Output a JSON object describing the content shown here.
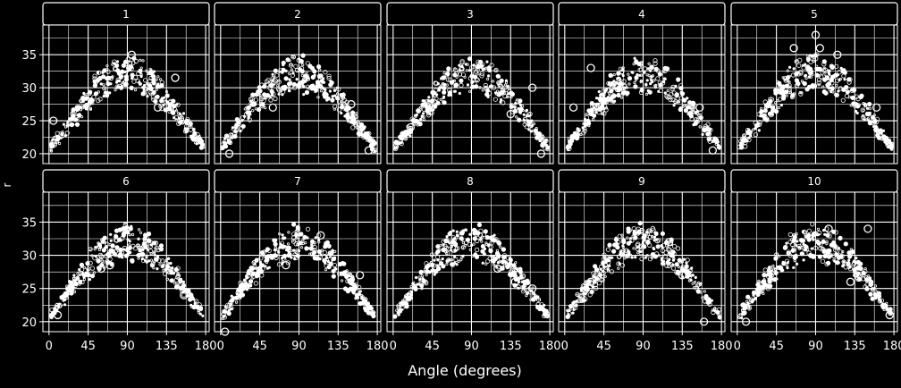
{
  "chart_data": {
    "type": "scatter",
    "title": "",
    "xlabel": "Angle (degrees)",
    "ylabel": "r",
    "xlim": [
      -7,
      184
    ],
    "ylim": [
      18.5,
      39.5
    ],
    "x_ticks": [
      0,
      45,
      90,
      135,
      180
    ],
    "x_tick_labels": [
      "0",
      "45",
      "90",
      "135",
      "180"
    ],
    "y_ticks": [
      20,
      25,
      30,
      35
    ],
    "y_tick_labels": [
      "20",
      "25",
      "30",
      "35"
    ],
    "grid": true,
    "layout": "facets 2 rows x 5 columns, shared axes",
    "panels": [
      {
        "label": "1",
        "outer_peak": 34.5,
        "inner_peak": 29.5,
        "end_left": 21,
        "end_right": 21,
        "outliers": [
          [
            95,
            35
          ],
          [
            145,
            31.5
          ],
          [
            125,
            27
          ],
          [
            5,
            25
          ]
        ]
      },
      {
        "label": "2",
        "outer_peak": 34.5,
        "inner_peak": 29.5,
        "end_left": 21,
        "end_right": 21,
        "outliers": [
          [
            10,
            20
          ],
          [
            170,
            20.5
          ],
          [
            60,
            27
          ],
          [
            150,
            27.5
          ]
        ]
      },
      {
        "label": "3",
        "outer_peak": 34.5,
        "inner_peak": 29.5,
        "end_left": 21,
        "end_right": 21,
        "outliers": [
          [
            160,
            30
          ],
          [
            135,
            26
          ],
          [
            20,
            24
          ],
          [
            170,
            20
          ]
        ]
      },
      {
        "label": "4",
        "outer_peak": 34.5,
        "inner_peak": 29.5,
        "end_left": 21,
        "end_right": 21,
        "outliers": [
          [
            30,
            33
          ],
          [
            155,
            27
          ],
          [
            10,
            27
          ],
          [
            170,
            20.5
          ]
        ]
      },
      {
        "label": "5",
        "outer_peak": 35,
        "inner_peak": 29.5,
        "end_left": 21,
        "end_right": 21,
        "outliers": [
          [
            90,
            38
          ],
          [
            65,
            36
          ],
          [
            95,
            36
          ],
          [
            115,
            35
          ],
          [
            160,
            27
          ]
        ]
      },
      {
        "label": "6",
        "outer_peak": 34.5,
        "inner_peak": 29.5,
        "end_left": 21,
        "end_right": 21,
        "outliers": [
          [
            10,
            21
          ],
          [
            70,
            28.5
          ],
          [
            60,
            28
          ],
          [
            155,
            24
          ]
        ]
      },
      {
        "label": "7",
        "outer_peak": 34.5,
        "inner_peak": 29.5,
        "end_left": 21,
        "end_right": 21,
        "outliers": [
          [
            5,
            18.5
          ],
          [
            75,
            28.5
          ],
          [
            115,
            33
          ],
          [
            160,
            27
          ]
        ]
      },
      {
        "label": "8",
        "outer_peak": 34.5,
        "inner_peak": 29.5,
        "end_left": 21,
        "end_right": 21,
        "outliers": [
          [
            70,
            31
          ],
          [
            120,
            28
          ],
          [
            140,
            26
          ],
          [
            160,
            25
          ]
        ]
      },
      {
        "label": "9",
        "outer_peak": 34.5,
        "inner_peak": 29.5,
        "end_left": 21,
        "end_right": 21,
        "outliers": [
          [
            30,
            26
          ],
          [
            135,
            27
          ],
          [
            160,
            20
          ],
          [
            120,
            32
          ]
        ]
      },
      {
        "label": "10",
        "outer_peak": 34.5,
        "inner_peak": 29.5,
        "end_left": 21,
        "end_right": 21,
        "outliers": [
          [
            105,
            34
          ],
          [
            150,
            34
          ],
          [
            175,
            21
          ],
          [
            130,
            26
          ],
          [
            10,
            20
          ]
        ]
      }
    ]
  },
  "colors": {
    "background": "#000000",
    "panel_background": "#000000",
    "grid": "#ffffff",
    "points": "#ffffff",
    "strip_border": "#ffffff",
    "text": "#ffffff"
  }
}
